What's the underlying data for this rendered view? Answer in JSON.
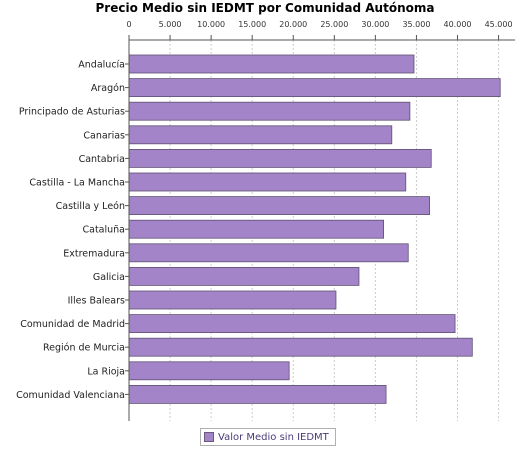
{
  "chart_data": {
    "type": "bar",
    "orientation": "horizontal",
    "title": "Precio Medio sin IEDMT por Comunidad Autónoma",
    "categories": [
      "Andalucía",
      "Aragón",
      "Principado de Asturias",
      "Canarias",
      "Cantabria",
      "Castilla - La Mancha",
      "Castilla y León",
      "Cataluña",
      "Extremadura",
      "Galicia",
      "Illes Balears",
      "Comunidad de Madrid",
      "Región de Murcia",
      "La Rioja",
      "Comunidad Valenciana"
    ],
    "series": [
      {
        "name": "Valor Medio sin IEDMT",
        "values": [
          34700,
          45200,
          34200,
          32000,
          36800,
          33700,
          36600,
          31000,
          34000,
          28000,
          25200,
          39700,
          41800,
          19500,
          31300
        ],
        "color": "#a484c8"
      }
    ],
    "xaxis_position": "top",
    "tick_values": [
      0,
      5000,
      10000,
      15000,
      20000,
      25000,
      30000,
      35000,
      40000,
      45000
    ],
    "tick_labels": [
      "0",
      "5.000",
      "10.000",
      "15.000",
      "20.000",
      "25.000",
      "30.000",
      "35.000",
      "40.000",
      "45.000"
    ],
    "xlim": [
      0,
      47000
    ],
    "grid": true,
    "legend_position": "bottom"
  }
}
